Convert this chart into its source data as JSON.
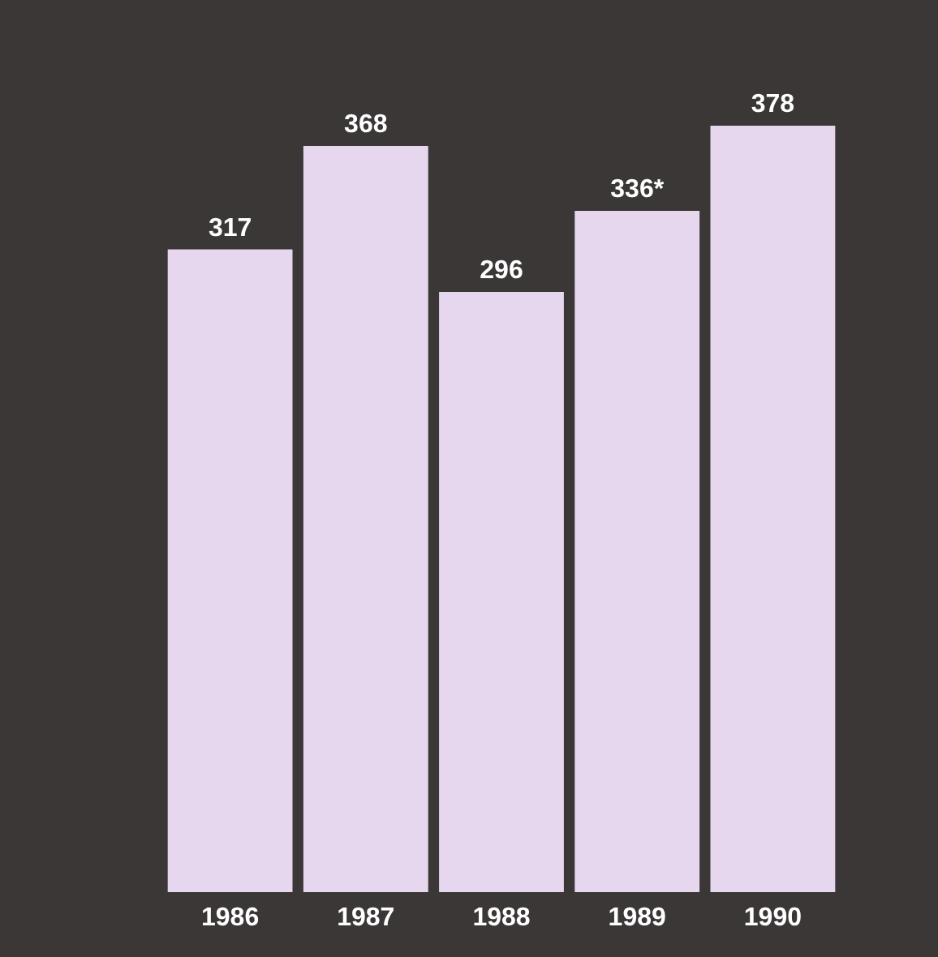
{
  "chart_data": {
    "type": "bar",
    "categories": [
      "1986",
      "1987",
      "1988",
      "1989",
      "1990"
    ],
    "values": [
      317,
      368,
      296,
      336,
      378
    ],
    "value_labels": [
      "317",
      "368",
      "296",
      "336*",
      "378"
    ],
    "color": "#e6d6ee"
  }
}
